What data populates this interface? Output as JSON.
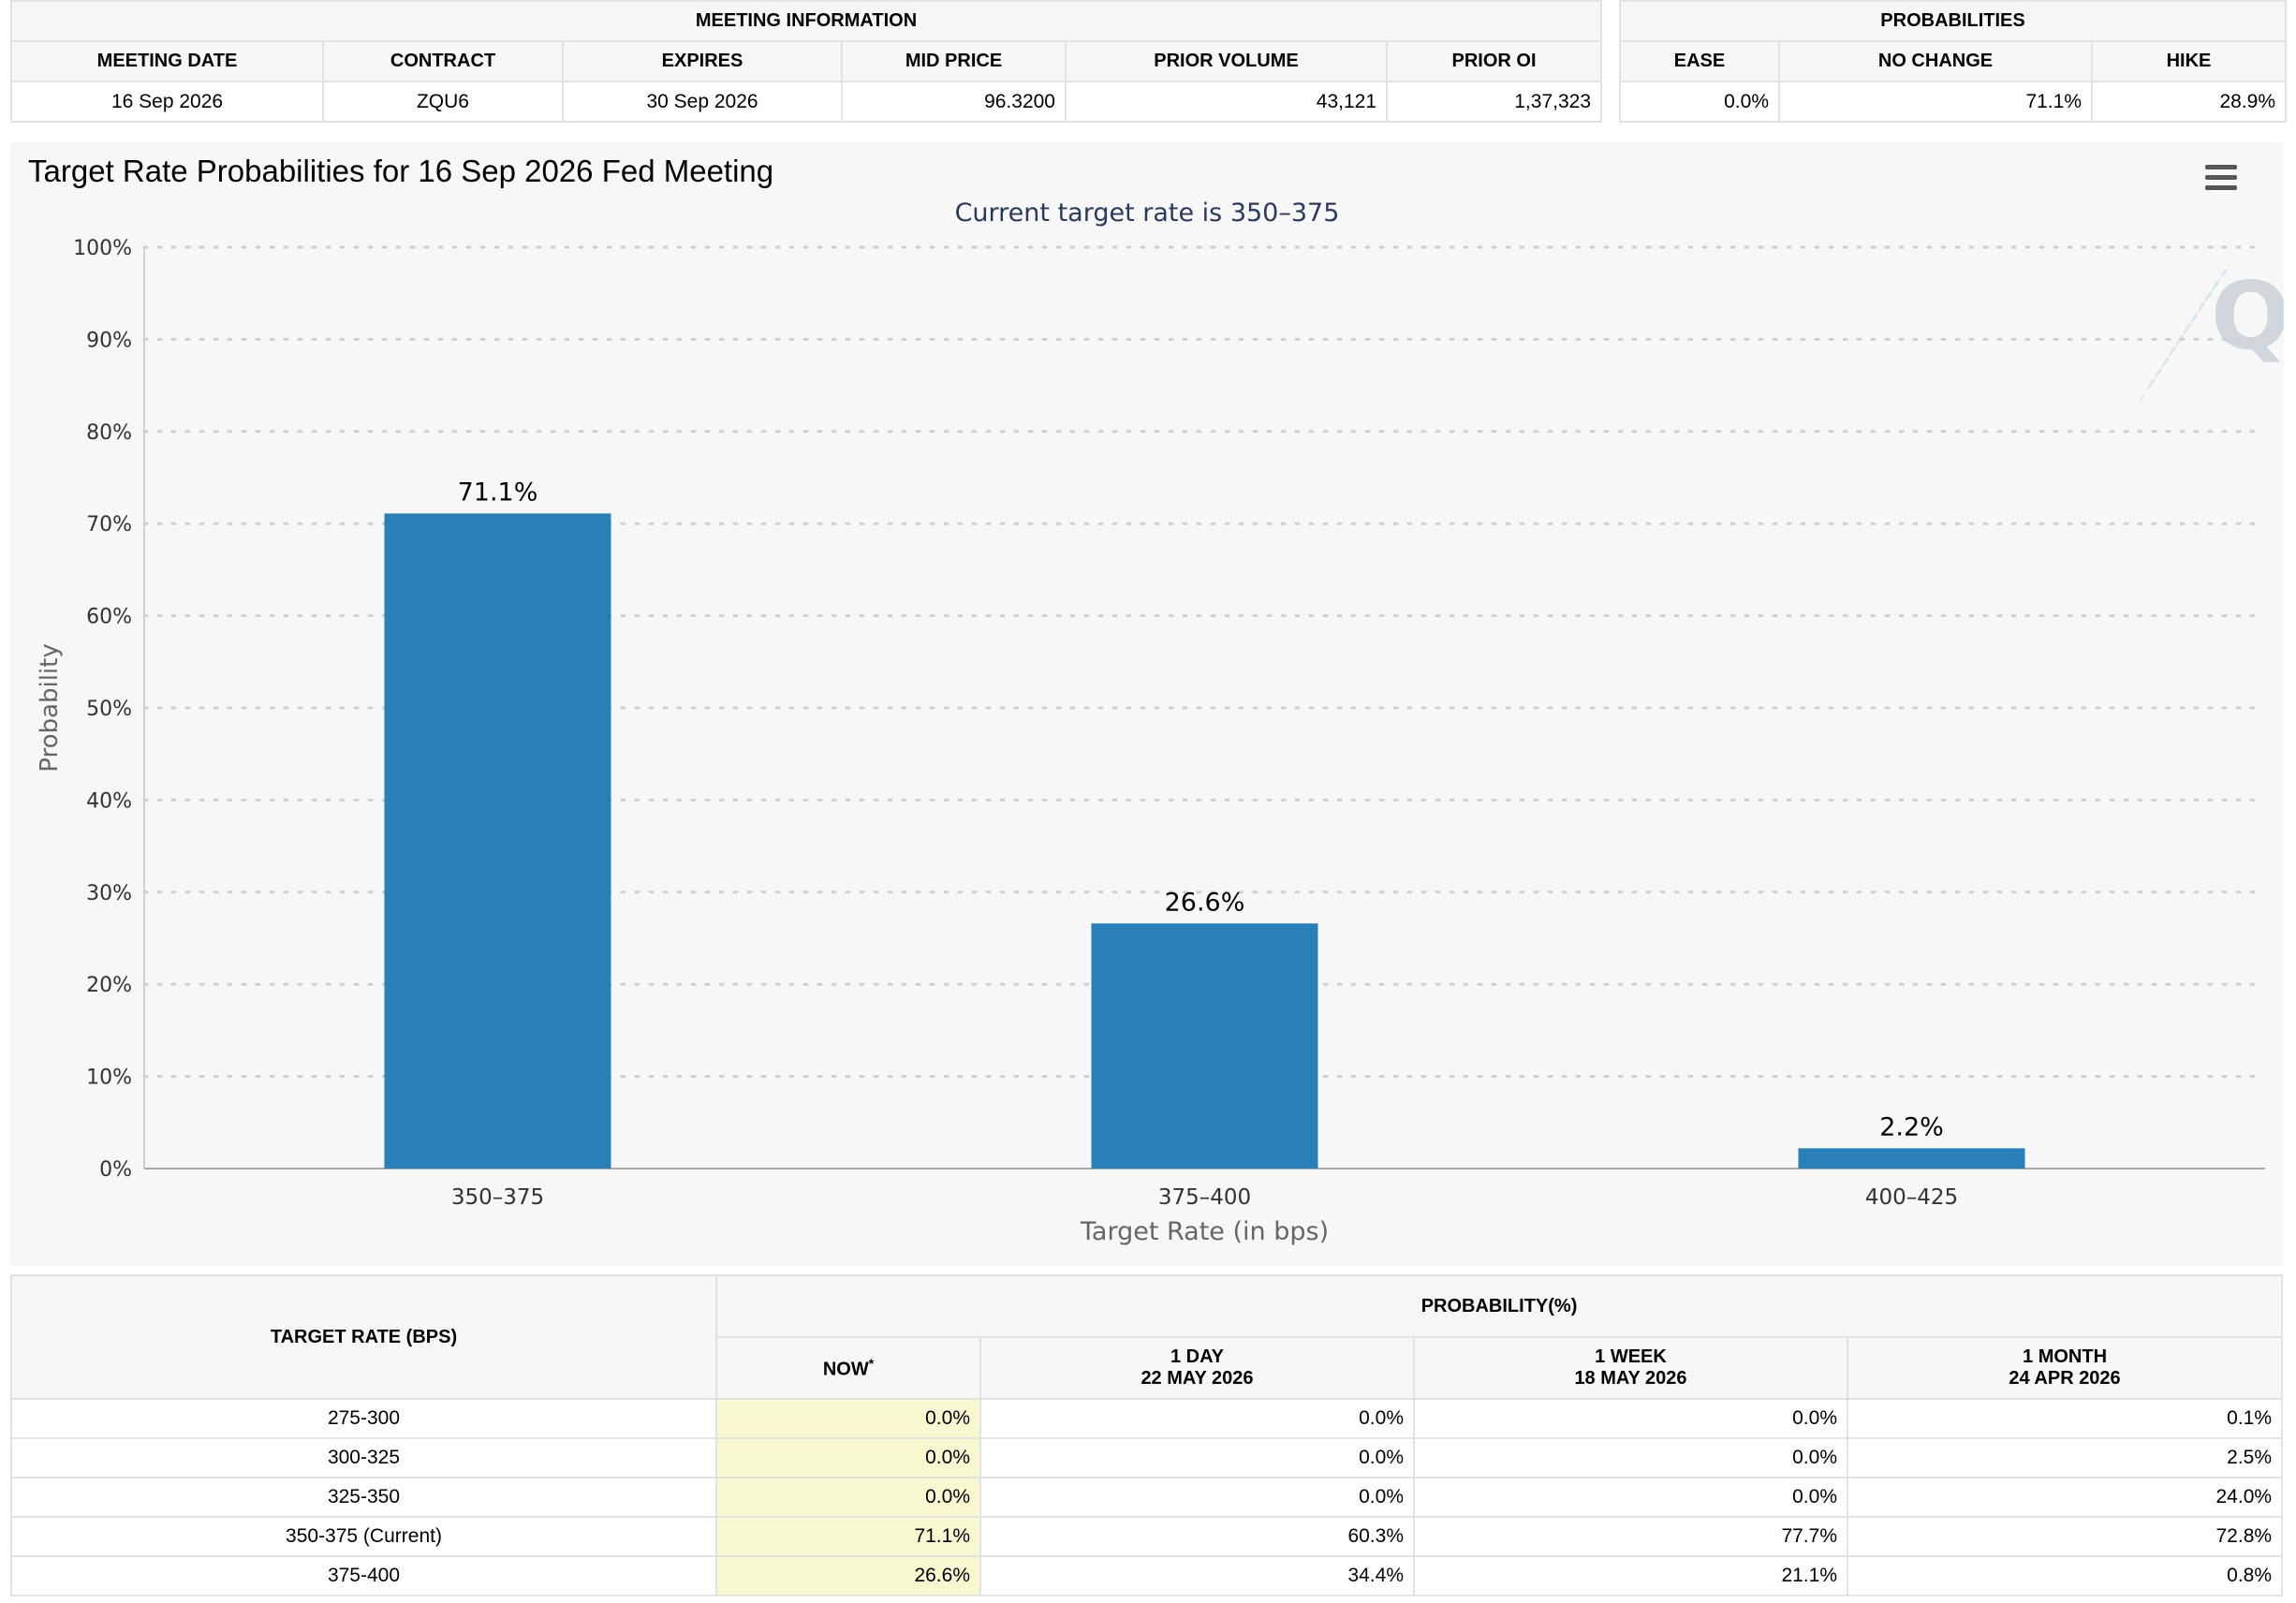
{
  "meeting_info": {
    "title": "MEETING INFORMATION",
    "headers": [
      "MEETING DATE",
      "CONTRACT",
      "EXPIRES",
      "MID PRICE",
      "PRIOR VOLUME",
      "PRIOR OI"
    ],
    "row": [
      "16 Sep 2026",
      "ZQU6",
      "30 Sep 2026",
      "96.3200",
      "43,121",
      "1,37,323"
    ]
  },
  "probabilities": {
    "title": "PROBABILITIES",
    "headers": [
      "EASE",
      "NO CHANGE",
      "HIKE"
    ],
    "row": [
      "0.0%",
      "71.1%",
      "28.9%"
    ]
  },
  "chart": {
    "title": "Target Rate Probabilities for 16 Sep 2026 Fed Meeting",
    "subtitle": "Current target rate is 350–375",
    "menu_icon": "hamburger-menu-icon",
    "watermark_icon": "quikstrike-q-logo"
  },
  "chart_data": {
    "type": "bar",
    "title": "Target Rate Probabilities for 16 Sep 2026 Fed Meeting",
    "subtitle": "Current target rate is 350–375",
    "categories": [
      "350–375",
      "375–400",
      "400–425"
    ],
    "values": [
      71.1,
      26.6,
      2.2
    ],
    "data_labels": [
      "71.1%",
      "26.6%",
      "2.2%"
    ],
    "xlabel": "Target Rate (in bps)",
    "ylabel": "Probability",
    "ylim": [
      0,
      100
    ],
    "yticks": [
      "0%",
      "10%",
      "20%",
      "30%",
      "40%",
      "50%",
      "60%",
      "70%",
      "80%",
      "90%",
      "100%"
    ],
    "grid": true,
    "bar_color": "#2980b9"
  },
  "rate_table": {
    "target_header": "TARGET RATE (BPS)",
    "prob_header": "PROBABILITY(%)",
    "columns": [
      {
        "label": "NOW",
        "sup": "*",
        "date": ""
      },
      {
        "label": "1 DAY",
        "date": "22 MAY 2026"
      },
      {
        "label": "1 WEEK",
        "date": "18 MAY 2026"
      },
      {
        "label": "1 MONTH",
        "date": "24 APR 2026"
      }
    ],
    "rows": [
      {
        "rate": "275-300",
        "values": [
          "0.0%",
          "0.0%",
          "0.0%",
          "0.1%"
        ]
      },
      {
        "rate": "300-325",
        "values": [
          "0.0%",
          "0.0%",
          "0.0%",
          "2.5%"
        ]
      },
      {
        "rate": "325-350",
        "values": [
          "0.0%",
          "0.0%",
          "0.0%",
          "24.0%"
        ]
      },
      {
        "rate": "350-375 (Current)",
        "values": [
          "71.1%",
          "60.3%",
          "77.7%",
          "72.8%"
        ]
      },
      {
        "rate": "375-400",
        "values": [
          "26.6%",
          "34.4%",
          "21.1%",
          "0.8%"
        ]
      }
    ]
  }
}
